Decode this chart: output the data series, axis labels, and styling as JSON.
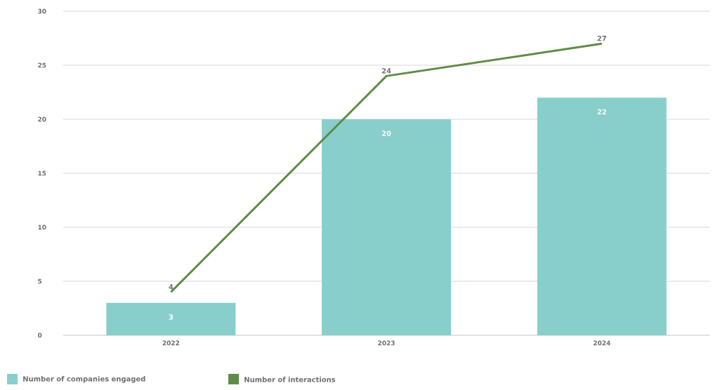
{
  "chart_data": {
    "type": "bar",
    "categories": [
      "2022",
      "2023",
      "2024"
    ],
    "series": [
      {
        "name": "Number of companies engaged",
        "color": "#88cfcb",
        "values": [
          3,
          20,
          22
        ]
      },
      {
        "name": "Number of interactions",
        "type": "line",
        "color": "#5e8c46",
        "values": [
          4,
          24,
          27
        ]
      }
    ],
    "ylim": [
      0,
      30
    ],
    "yticks": [
      0,
      5,
      10,
      15,
      20,
      25,
      30
    ],
    "grid": "y",
    "legend": "bottom left",
    "data_labels": true,
    "marker": "none",
    "line_style": "solid"
  }
}
